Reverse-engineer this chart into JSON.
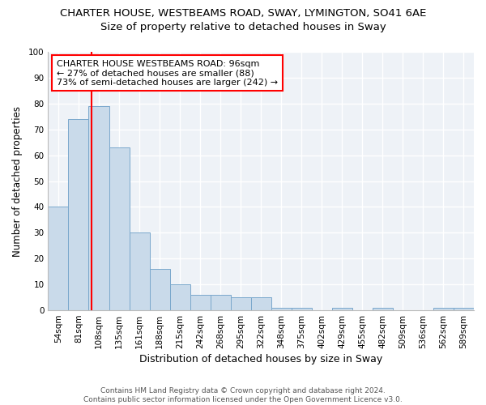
{
  "title1": "CHARTER HOUSE, WESTBEAMS ROAD, SWAY, LYMINGTON, SO41 6AE",
  "title2": "Size of property relative to detached houses in Sway",
  "xlabel": "Distribution of detached houses by size in Sway",
  "ylabel": "Number of detached properties",
  "categories": [
    "54sqm",
    "81sqm",
    "108sqm",
    "135sqm",
    "161sqm",
    "188sqm",
    "215sqm",
    "242sqm",
    "268sqm",
    "295sqm",
    "322sqm",
    "348sqm",
    "375sqm",
    "402sqm",
    "429sqm",
    "455sqm",
    "482sqm",
    "509sqm",
    "536sqm",
    "562sqm",
    "589sqm"
  ],
  "values": [
    40,
    74,
    79,
    63,
    30,
    16,
    10,
    6,
    6,
    5,
    5,
    1,
    1,
    0,
    1,
    0,
    1,
    0,
    0,
    1,
    1
  ],
  "bar_color": "#c9daea",
  "bar_edge_color": "#7aa8cc",
  "bar_width": 1.0,
  "ylim": [
    0,
    100
  ],
  "yticks": [
    0,
    10,
    20,
    30,
    40,
    50,
    60,
    70,
    80,
    90,
    100
  ],
  "red_line_x": 1.63,
  "annotation_text": "CHARTER HOUSE WESTBEAMS ROAD: 96sqm\n← 27% of detached houses are smaller (88)\n73% of semi-detached houses are larger (242) →",
  "annotation_box_color": "white",
  "annotation_border_color": "red",
  "footer_text": "Contains HM Land Registry data © Crown copyright and database right 2024.\nContains public sector information licensed under the Open Government Licence v3.0.",
  "background_color": "#eef2f7",
  "grid_color": "white",
  "title1_fontsize": 9.5,
  "title2_fontsize": 9.5,
  "xlabel_fontsize": 9,
  "ylabel_fontsize": 8.5,
  "tick_fontsize": 7.5,
  "annotation_fontsize": 8,
  "footer_fontsize": 6.5
}
